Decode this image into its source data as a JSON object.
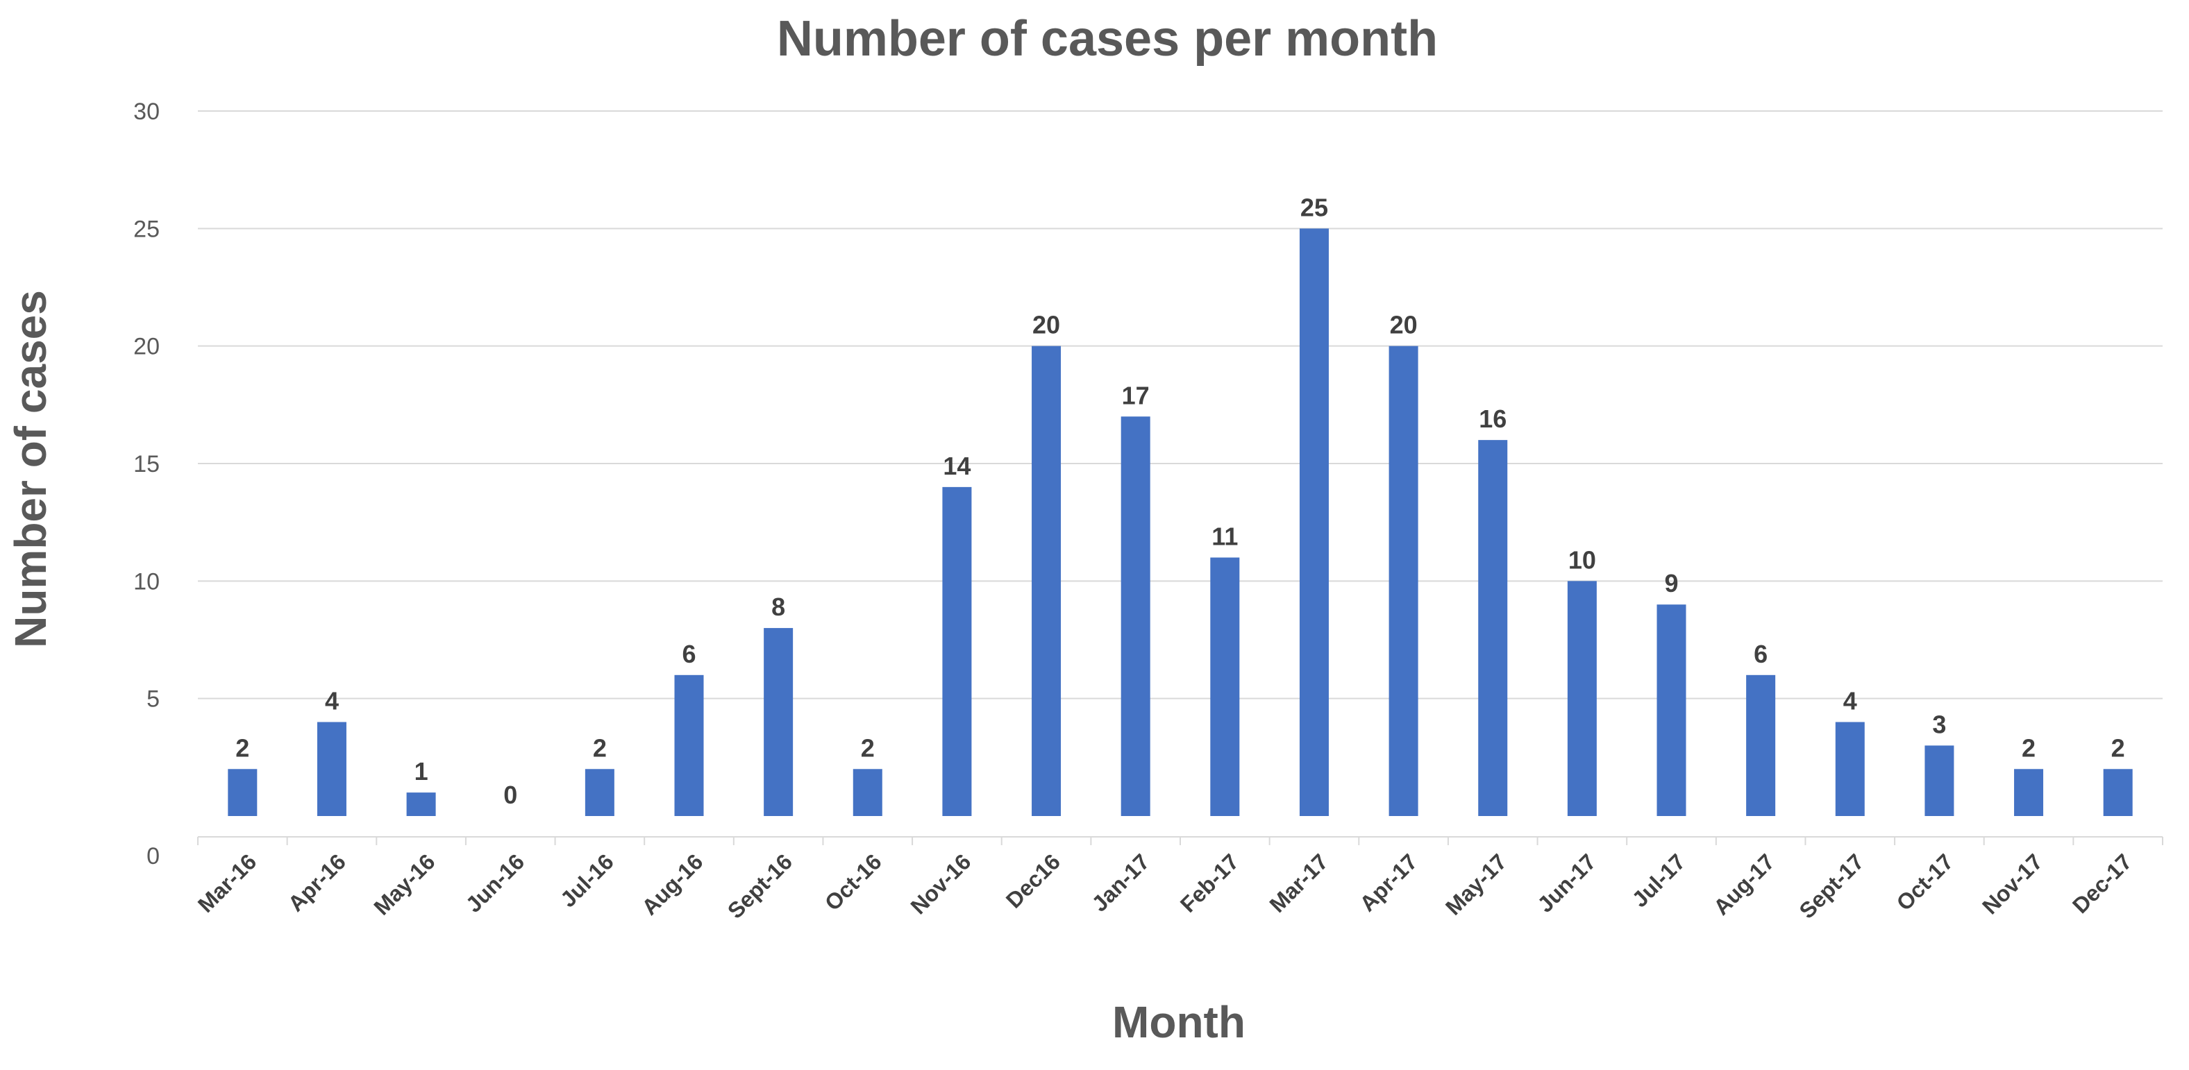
{
  "chart_data": {
    "type": "bar",
    "title": "Number of cases per month",
    "xlabel": "Month",
    "ylabel": "Number of cases",
    "ylim": [
      0,
      30
    ],
    "yticks": [
      "0",
      "5",
      "10",
      "15",
      "20",
      "25",
      "30"
    ],
    "grid": true,
    "bar_color": "#4472C4",
    "categories": [
      "Mar-16",
      "Apr-16",
      "May-16",
      "Jun-16",
      "Jul-16",
      "Aug-16",
      "Sept-16",
      "Oct-16",
      "Nov-16",
      "Dec16",
      "Jan-17",
      "Feb-17",
      "Mar-17",
      "Apr-17",
      "May-17",
      "Jun-17",
      "Jul-17",
      "Aug-17",
      "Sept-17",
      "Oct-17",
      "Nov-17",
      "Dec-17"
    ],
    "values": [
      2,
      4,
      1,
      0,
      2,
      6,
      8,
      2,
      14,
      20,
      17,
      11,
      25,
      20,
      16,
      10,
      9,
      6,
      4,
      3,
      2,
      2
    ],
    "data_labels": [
      "2",
      "4",
      "1",
      "0",
      "2",
      "6",
      "8",
      "2",
      "14",
      "20",
      "17",
      "11",
      "25",
      "20",
      "16",
      "10",
      "9",
      "6",
      "4",
      "3",
      "2",
      "2"
    ]
  }
}
